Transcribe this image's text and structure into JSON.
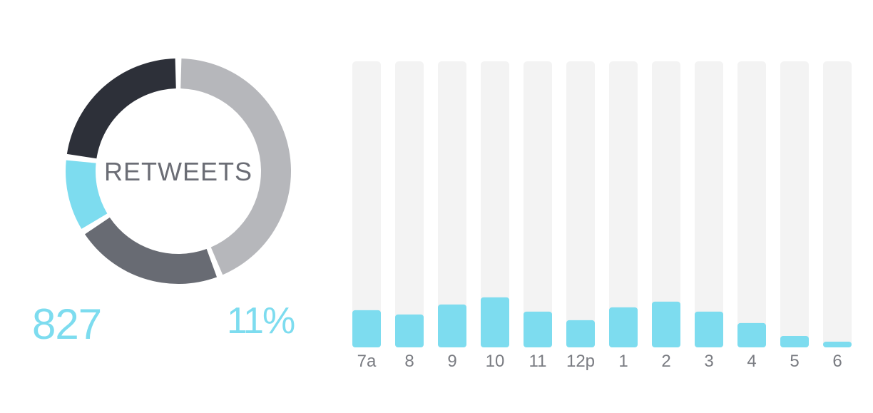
{
  "summary": {
    "center_label": "RETWEETS",
    "total": "827",
    "percent": "11%"
  },
  "colors": {
    "accent": "#7ddcef",
    "track": "#f3f3f3",
    "tick": "#7a7c82"
  },
  "chart_data": [
    {
      "type": "pie",
      "variant": "donut",
      "title": "RETWEETS",
      "slices": [
        {
          "value": 44,
          "color": "#b6b7bb"
        },
        {
          "value": 22,
          "color": "#686b73"
        },
        {
          "value": 11,
          "color": "#7ddcef"
        },
        {
          "value": 23,
          "color": "#2d3039"
        }
      ]
    },
    {
      "type": "bar",
      "categories": [
        "7a",
        "8",
        "9",
        "10",
        "11",
        "12p",
        "1",
        "2",
        "3",
        "4",
        "5",
        "6"
      ],
      "values": [
        13,
        11.5,
        15,
        17.5,
        12.5,
        9.5,
        14,
        16,
        12.5,
        8.5,
        4,
        2
      ],
      "ylim": [
        0,
        100
      ],
      "grid": false
    }
  ]
}
